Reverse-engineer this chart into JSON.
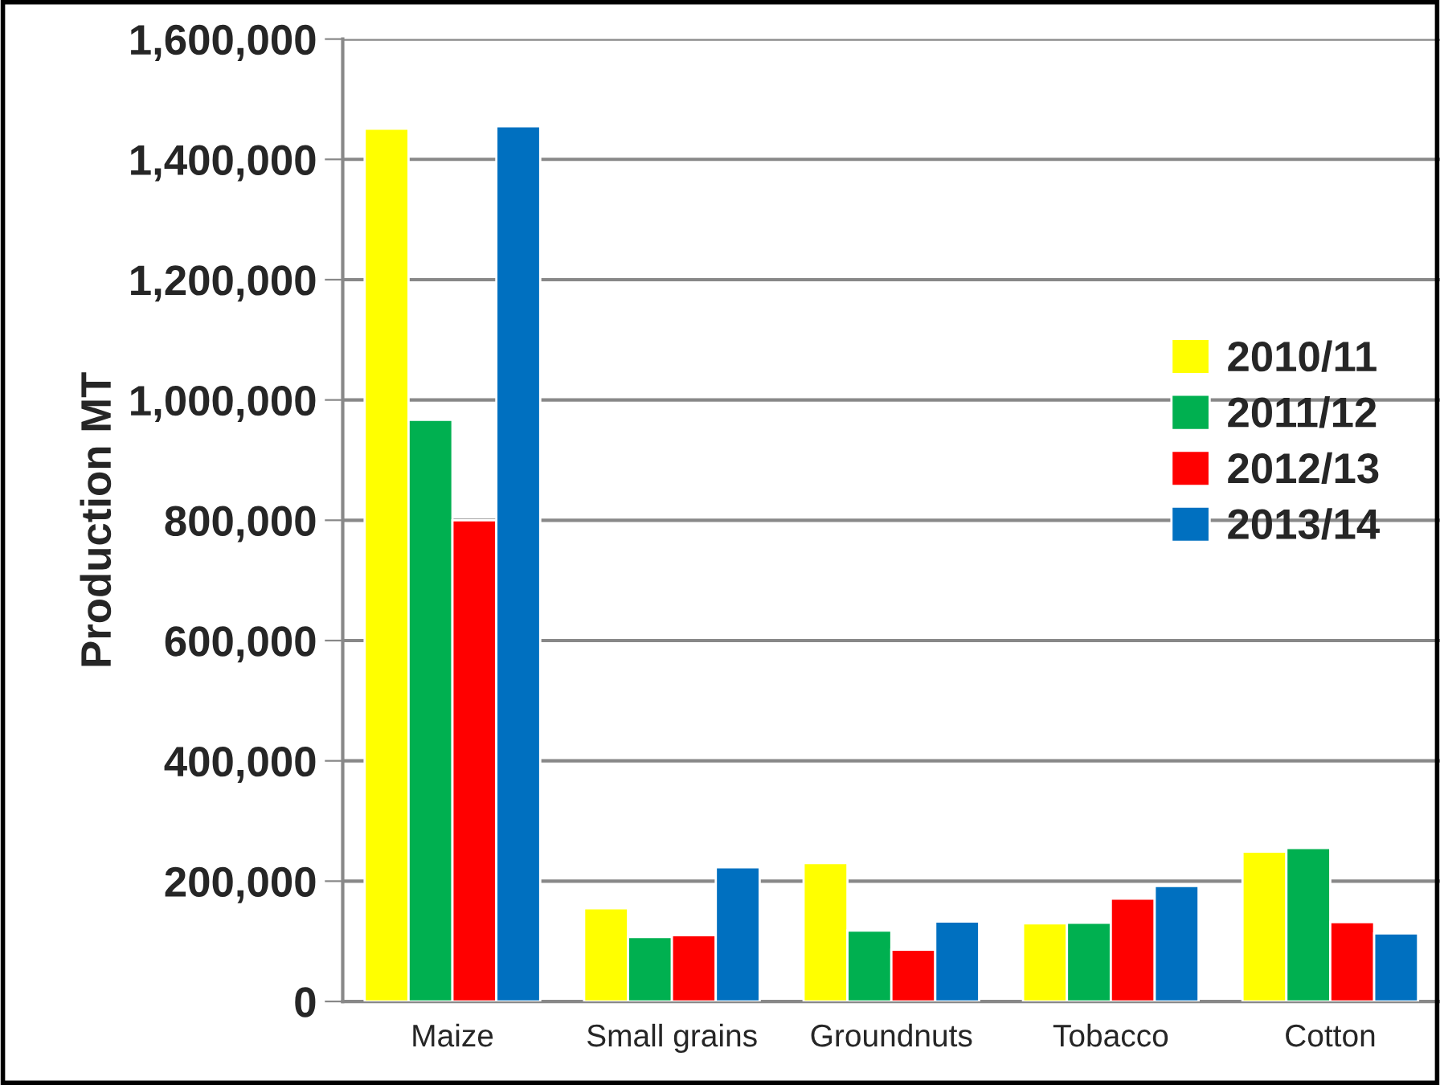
{
  "chart_data": {
    "type": "bar",
    "ylabel": "Production MT",
    "categories": [
      "Maize",
      "Small grains",
      "Groundnuts",
      "Tobacco",
      "Cotton"
    ],
    "series": [
      {
        "name": "2010/11",
        "color": "#ffff00",
        "values": [
          1451000,
          155000,
          230000,
          130000,
          249000
        ]
      },
      {
        "name": "2011/12",
        "color": "#00b050",
        "values": [
          967000,
          107000,
          118000,
          131000,
          255000
        ]
      },
      {
        "name": "2012/13",
        "color": "#ff0000",
        "values": [
          800000,
          110000,
          86000,
          171000,
          132000
        ]
      },
      {
        "name": "2013/14",
        "color": "#0070c0",
        "values": [
          1455000,
          223000,
          133000,
          192000,
          113000
        ]
      }
    ],
    "ylim": [
      0,
      1600000
    ],
    "yticks": [
      {
        "value": 0,
        "label": "0"
      },
      {
        "value": 200000,
        "label": "200,000"
      },
      {
        "value": 400000,
        "label": "400,000"
      },
      {
        "value": 600000,
        "label": "600,000"
      },
      {
        "value": 800000,
        "label": "800,000"
      },
      {
        "value": 1000000,
        "label": "1,000,000"
      },
      {
        "value": 1200000,
        "label": "1,200,000"
      },
      {
        "value": 1400000,
        "label": "1,400,000"
      },
      {
        "value": 1600000,
        "label": "1,600,000"
      }
    ],
    "grid": "y",
    "legend": "right"
  }
}
